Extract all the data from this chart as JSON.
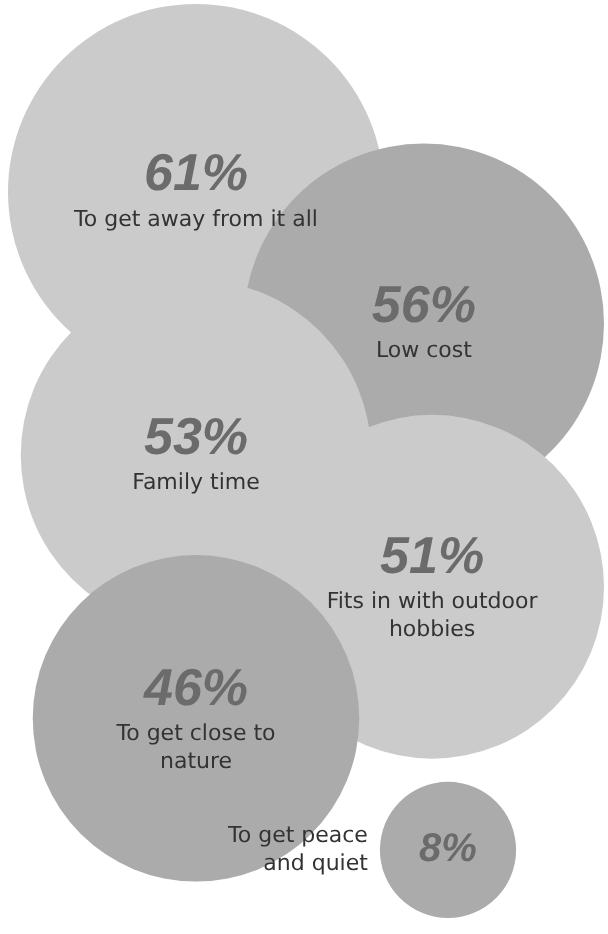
{
  "chart_data": {
    "type": "other",
    "categories": [
      "To get away from it all",
      "Low cost",
      "Family time",
      "Fits in with outdoor hobbies",
      "To get close to nature",
      "To get peace and quiet"
    ],
    "values": [
      61,
      56,
      53,
      51,
      46,
      8
    ],
    "colors": [
      "#cbcbcb",
      "#ababab",
      "#cbcbcb",
      "#cbcbcb",
      "#ababab",
      "#ababab"
    ],
    "value_labels": [
      "61%",
      "56%",
      "53%",
      "51%",
      "46%",
      "8%"
    ]
  }
}
